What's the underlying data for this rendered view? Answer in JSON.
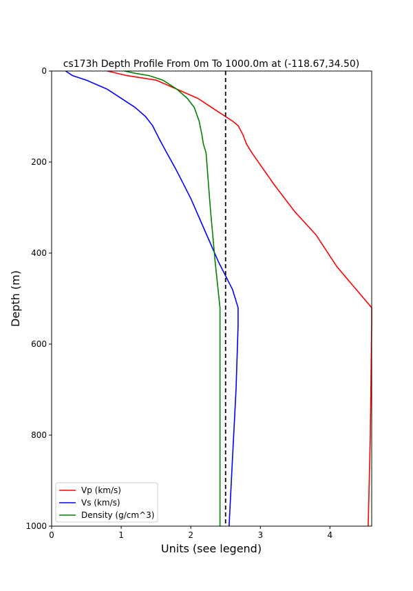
{
  "chart_data": {
    "type": "line",
    "title": "cs173h Depth Profile From 0m To 1000.0m at (-118.67,34.50)",
    "xlabel": "Units (see legend)",
    "ylabel": "Depth (m)",
    "xlim": [
      0,
      4.6
    ],
    "ylim": [
      0,
      1000
    ],
    "y_inverted": true,
    "xticks": [
      0,
      1,
      2,
      3,
      4
    ],
    "yticks": [
      0,
      200,
      400,
      600,
      800,
      1000
    ],
    "grid": false,
    "legend_position": "lower-left",
    "reference_line": {
      "x": 2.5,
      "style": "dashed",
      "color": "#000000"
    },
    "series": [
      {
        "name": "Vp (km/s)",
        "color": "#ff0000",
        "points": [
          [
            0.8,
            0
          ],
          [
            1.08,
            10
          ],
          [
            1.5,
            20
          ],
          [
            1.8,
            40
          ],
          [
            2.1,
            60
          ],
          [
            2.4,
            90
          ],
          [
            2.6,
            110
          ],
          [
            2.68,
            120
          ],
          [
            2.75,
            140
          ],
          [
            2.8,
            160
          ],
          [
            2.88,
            180
          ],
          [
            3.2,
            250
          ],
          [
            3.5,
            310
          ],
          [
            3.8,
            360
          ],
          [
            4.1,
            430
          ],
          [
            4.6,
            520
          ],
          [
            4.6,
            550
          ],
          [
            4.58,
            800
          ],
          [
            4.55,
            1000
          ]
        ]
      },
      {
        "name": "Vs (km/s)",
        "color": "#0000ff",
        "points": [
          [
            0.2,
            0
          ],
          [
            0.3,
            10
          ],
          [
            0.5,
            20
          ],
          [
            0.8,
            40
          ],
          [
            1.0,
            60
          ],
          [
            1.2,
            80
          ],
          [
            1.35,
            100
          ],
          [
            1.45,
            120
          ],
          [
            1.55,
            150
          ],
          [
            1.62,
            170
          ],
          [
            1.8,
            220
          ],
          [
            2.0,
            280
          ],
          [
            2.2,
            350
          ],
          [
            2.4,
            420
          ],
          [
            2.6,
            480
          ],
          [
            2.68,
            520
          ],
          [
            2.68,
            560
          ],
          [
            2.65,
            700
          ],
          [
            2.6,
            850
          ],
          [
            2.55,
            1000
          ]
        ]
      },
      {
        "name": "Density (g/cm^3)",
        "color": "#008000",
        "points": [
          [
            1.05,
            0
          ],
          [
            1.2,
            5
          ],
          [
            1.4,
            10
          ],
          [
            1.6,
            20
          ],
          [
            1.8,
            40
          ],
          [
            1.95,
            60
          ],
          [
            2.05,
            80
          ],
          [
            2.12,
            110
          ],
          [
            2.16,
            140
          ],
          [
            2.18,
            160
          ],
          [
            2.22,
            180
          ],
          [
            2.28,
            300
          ],
          [
            2.35,
            420
          ],
          [
            2.42,
            520
          ],
          [
            2.42,
            560
          ],
          [
            2.42,
            800
          ],
          [
            2.42,
            1000
          ]
        ]
      }
    ]
  }
}
